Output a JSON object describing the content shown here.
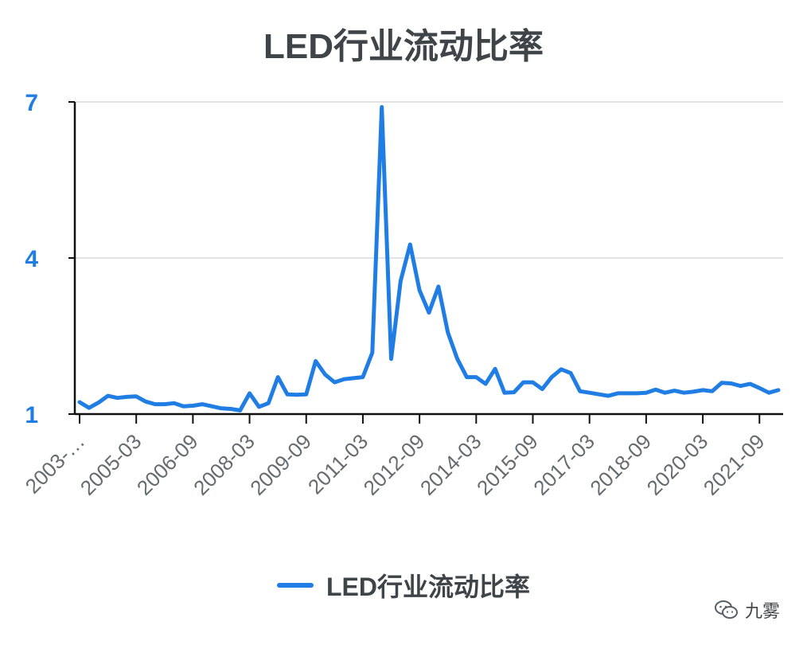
{
  "title": "LED行业流动比率",
  "colors": {
    "line": "#1f7de3",
    "grid": "#e3e3e3",
    "axis": "#111111",
    "title": "#3f4448",
    "xtick": "#666b70"
  },
  "legend": {
    "label": "LED行业流动比率"
  },
  "watermark": {
    "text": "九雾",
    "icon": "wechat-icon"
  },
  "chart_data": {
    "type": "line",
    "title": "LED行业流动比率",
    "xlabel": "",
    "ylabel": "",
    "ylim": [
      1,
      7
    ],
    "yticks": [
      1,
      4,
      7
    ],
    "grid": true,
    "legend_position": "bottom",
    "xtick_labels": [
      "2003-…",
      "2005-03",
      "2006-09",
      "2008-03",
      "2009-09",
      "2011-03",
      "2012-09",
      "2014-03",
      "2015-09",
      "2017-03",
      "2018-09",
      "2020-03",
      "2021-09"
    ],
    "series": [
      {
        "name": "LED行业流动比率",
        "x": [
          "2003-09",
          "2003-12",
          "2004-03",
          "2004-06",
          "2004-09",
          "2004-12",
          "2005-03",
          "2005-06",
          "2005-09",
          "2005-12",
          "2006-03",
          "2006-06",
          "2006-09",
          "2006-12",
          "2007-03",
          "2007-06",
          "2007-09",
          "2007-12",
          "2008-03",
          "2008-06",
          "2008-09",
          "2008-12",
          "2009-03",
          "2009-06",
          "2009-09",
          "2009-12",
          "2010-03",
          "2010-06",
          "2010-09",
          "2010-12",
          "2011-03",
          "2011-06",
          "2011-09",
          "2011-12",
          "2012-03",
          "2012-06",
          "2012-09",
          "2012-12",
          "2013-03",
          "2013-06",
          "2013-09",
          "2013-12",
          "2014-03",
          "2014-06",
          "2014-09",
          "2014-12",
          "2015-03",
          "2015-06",
          "2015-09",
          "2015-12",
          "2016-03",
          "2016-06",
          "2016-09",
          "2016-12",
          "2017-03",
          "2017-06",
          "2017-09",
          "2017-12",
          "2018-03",
          "2018-06",
          "2018-09",
          "2018-12",
          "2019-03",
          "2019-06",
          "2019-09",
          "2019-12",
          "2020-03",
          "2020-06",
          "2020-09",
          "2020-12",
          "2021-03",
          "2021-06",
          "2021-09",
          "2021-12",
          "2022-03"
        ],
        "values": [
          1.23,
          1.12,
          1.22,
          1.35,
          1.31,
          1.33,
          1.34,
          1.24,
          1.19,
          1.19,
          1.21,
          1.15,
          1.16,
          1.19,
          1.15,
          1.11,
          1.1,
          1.07,
          1.4,
          1.14,
          1.21,
          1.71,
          1.38,
          1.37,
          1.38,
          2.02,
          1.76,
          1.61,
          1.67,
          1.69,
          1.71,
          2.18,
          6.9,
          2.06,
          3.56,
          4.26,
          3.38,
          2.95,
          3.45,
          2.57,
          2.06,
          1.71,
          1.71,
          1.58,
          1.87,
          1.41,
          1.42,
          1.61,
          1.61,
          1.48,
          1.71,
          1.86,
          1.79,
          1.44,
          1.41,
          1.38,
          1.35,
          1.4,
          1.4,
          1.4,
          1.41,
          1.47,
          1.41,
          1.45,
          1.41,
          1.43,
          1.46,
          1.44,
          1.6,
          1.59,
          1.54,
          1.58,
          1.5,
          1.41,
          1.46
        ]
      }
    ]
  }
}
